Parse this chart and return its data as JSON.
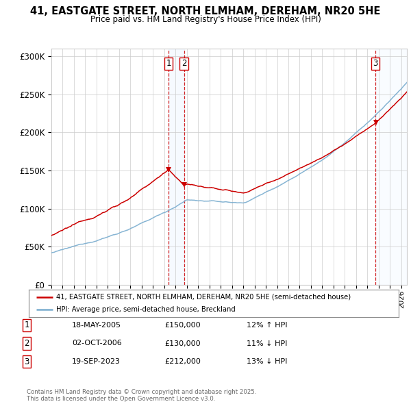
{
  "title": "41, EASTGATE STREET, NORTH ELMHAM, DEREHAM, NR20 5HE",
  "subtitle": "Price paid vs. HM Land Registry's House Price Index (HPI)",
  "ylabel_ticks": [
    "£0",
    "£50K",
    "£100K",
    "£150K",
    "£200K",
    "£250K",
    "£300K"
  ],
  "ytick_values": [
    0,
    50000,
    100000,
    150000,
    200000,
    250000,
    300000
  ],
  "ylim": [
    0,
    310000
  ],
  "xlim_start": 1995.0,
  "xlim_end": 2026.5,
  "sale1_date": 2005.38,
  "sale1_price": 150000,
  "sale2_date": 2006.75,
  "sale2_price": 130000,
  "sale3_date": 2023.72,
  "sale3_price": 212000,
  "property_color": "#cc0000",
  "hpi_color": "#7aadcf",
  "vline_color": "#cc0000",
  "shade_color": "#ddeeff",
  "grid_color": "#cccccc",
  "background_color": "#ffffff",
  "legend_entry1": "41, EASTGATE STREET, NORTH ELMHAM, DEREHAM, NR20 5HE (semi-detached house)",
  "legend_entry2": "HPI: Average price, semi-detached house, Breckland",
  "table_row1": [
    "1",
    "18-MAY-2005",
    "£150,000",
    "12% ↑ HPI"
  ],
  "table_row2": [
    "2",
    "02-OCT-2006",
    "£130,000",
    "11% ↓ HPI"
  ],
  "table_row3": [
    "3",
    "19-SEP-2023",
    "£212,000",
    "13% ↓ HPI"
  ],
  "footnote": "Contains HM Land Registry data © Crown copyright and database right 2025.\nThis data is licensed under the Open Government Licence v3.0."
}
